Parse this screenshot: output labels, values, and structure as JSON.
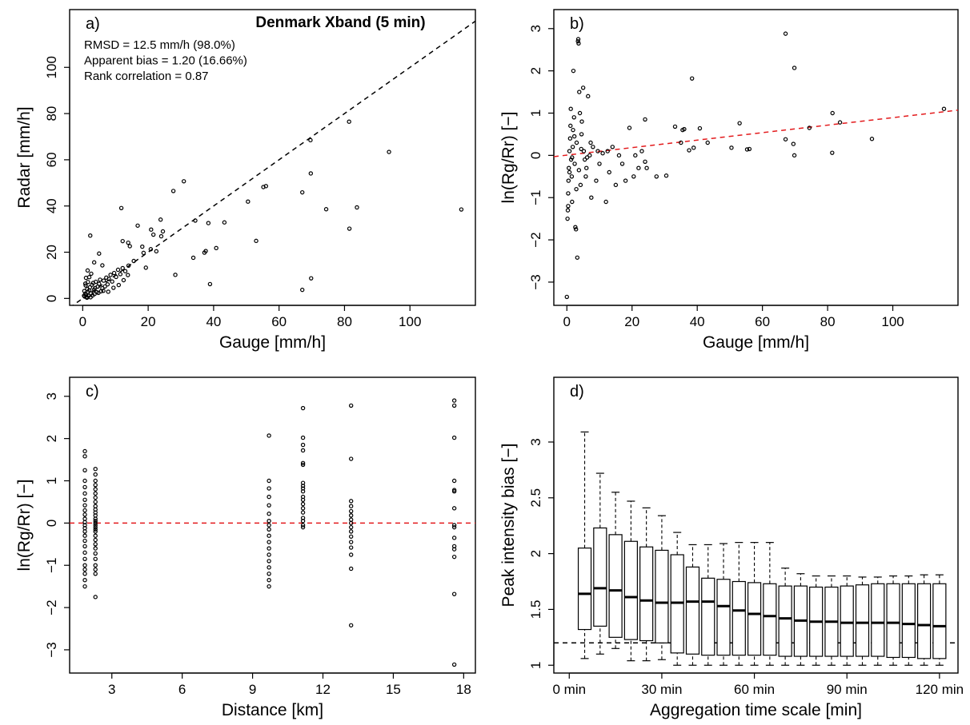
{
  "chart_data": [
    {
      "panel": "a)",
      "type": "scatter",
      "title": "Denmark Xband (5 min)",
      "annotations": [
        "RMSD = 12.5 mm/h (98.0%)",
        "Apparent bias = 1.20 (16.66%)",
        "Rank correlation = 0.87"
      ],
      "xlabel": "Gauge [mm/h]",
      "ylabel": "Radar [mm/h]",
      "xlim": [
        -4,
        120
      ],
      "ylim": [
        -3,
        125
      ],
      "xticks": [
        0,
        20,
        40,
        60,
        80,
        100
      ],
      "yticks": [
        0,
        20,
        40,
        60,
        80,
        100
      ],
      "reference_line": "1:1 dashed",
      "points": [
        [
          0.4,
          1.2
        ],
        [
          0.6,
          0.8
        ],
        [
          0.8,
          2.1
        ],
        [
          1.0,
          1.5
        ],
        [
          1.2,
          0.6
        ],
        [
          0.5,
          3.2
        ],
        [
          1.4,
          4.1
        ],
        [
          0.9,
          5.6
        ],
        [
          1.6,
          2.8
        ],
        [
          1.8,
          1.1
        ],
        [
          2.0,
          3.5
        ],
        [
          2.2,
          4.8
        ],
        [
          2.5,
          2.2
        ],
        [
          2.8,
          5.9
        ],
        [
          3.0,
          1.3
        ],
        [
          3.2,
          6.7
        ],
        [
          3.5,
          3.8
        ],
        [
          3.8,
          4.5
        ],
        [
          4.0,
          7.2
        ],
        [
          4.3,
          2.7
        ],
        [
          4.6,
          5.1
        ],
        [
          5.0,
          6.3
        ],
        [
          5.3,
          8.1
        ],
        [
          5.6,
          3.1
        ],
        [
          6.0,
          4.4
        ],
        [
          6.4,
          7.7
        ],
        [
          6.8,
          5.2
        ],
        [
          7.2,
          9.0
        ],
        [
          7.6,
          6.1
        ],
        [
          8.0,
          8.4
        ],
        [
          8.5,
          10.2
        ],
        [
          9.0,
          7.3
        ],
        [
          9.6,
          11.0
        ],
        [
          10.2,
          9.3
        ],
        [
          10.8,
          12.4
        ],
        [
          11.5,
          10.5
        ],
        [
          12.2,
          13.1
        ],
        [
          13.0,
          11.8
        ],
        [
          14.0,
          14.2
        ],
        [
          1.0,
          8.9
        ],
        [
          2.0,
          9.2
        ],
        [
          1.5,
          12.1
        ],
        [
          2.3,
          27.2
        ],
        [
          3.5,
          15.6
        ],
        [
          5.0,
          19.4
        ],
        [
          6.0,
          14.3
        ],
        [
          2.6,
          10.7
        ],
        [
          0.8,
          6.4
        ],
        [
          1.6,
          7.1
        ],
        [
          1.3,
          0.3
        ],
        [
          2.4,
          0.5
        ],
        [
          3.6,
          1.9
        ],
        [
          4.8,
          2.4
        ],
        [
          6.3,
          3.3
        ],
        [
          7.8,
          2.9
        ],
        [
          9.4,
          4.6
        ],
        [
          11.0,
          5.8
        ],
        [
          12.5,
          7.9
        ],
        [
          13.8,
          10.1
        ],
        [
          11.8,
          39.1
        ],
        [
          12.2,
          24.8
        ],
        [
          14.4,
          22.6
        ],
        [
          13.9,
          24.1
        ],
        [
          16.8,
          31.5
        ],
        [
          18.2,
          22.4
        ],
        [
          19.3,
          13.3
        ],
        [
          20.9,
          29.8
        ],
        [
          21.6,
          27.6
        ],
        [
          22.5,
          20.4
        ],
        [
          23.8,
          34.1
        ],
        [
          24.0,
          26.9
        ],
        [
          27.7,
          46.5
        ],
        [
          30.9,
          50.7
        ],
        [
          18.6,
          19.7
        ],
        [
          20.8,
          21.3
        ],
        [
          15.6,
          16.2
        ],
        [
          24.5,
          29.0
        ],
        [
          28.3,
          10.2
        ],
        [
          33.8,
          17.6
        ],
        [
          34.4,
          33.7
        ],
        [
          37.2,
          19.8
        ],
        [
          37.6,
          20.5
        ],
        [
          38.4,
          32.6
        ],
        [
          38.9,
          6.2
        ],
        [
          40.8,
          21.8
        ],
        [
          43.3,
          32.9
        ],
        [
          50.5,
          41.9
        ],
        [
          53.0,
          24.9
        ],
        [
          55.2,
          48.2
        ],
        [
          56.0,
          48.6
        ],
        [
          67.1,
          45.9
        ],
        [
          67.1,
          3.7
        ],
        [
          69.6,
          68.5
        ],
        [
          69.7,
          54.1
        ],
        [
          69.8,
          8.7
        ],
        [
          74.4,
          38.6
        ],
        [
          81.4,
          76.5
        ],
        [
          81.5,
          30.2
        ],
        [
          83.8,
          39.4
        ],
        [
          93.6,
          63.4
        ],
        [
          115.7,
          38.5
        ]
      ]
    },
    {
      "panel": "b)",
      "type": "scatter",
      "xlabel": "Gauge [mm/h]",
      "ylabel": "ln(Rg/Rr) [−]",
      "xlim": [
        -4,
        120
      ],
      "ylim": [
        -3.55,
        3.45
      ],
      "xticks": [
        0,
        20,
        40,
        60,
        80,
        100
      ],
      "yticks": [
        -3,
        -2,
        -1,
        0,
        1,
        2,
        3
      ],
      "ytick_labels": [
        "−3",
        "−2",
        "−1",
        "0",
        "1",
        "2",
        "3"
      ],
      "trend_line": {
        "color": "#e31a1c",
        "style": "dashed",
        "x": [
          -4,
          120
        ],
        "y": [
          -0.03,
          1.07
        ]
      },
      "points": [
        [
          0.0,
          -3.35
        ],
        [
          0.2,
          -1.5
        ],
        [
          0.3,
          -1.3
        ],
        [
          0.4,
          -0.9
        ],
        [
          0.5,
          -0.6
        ],
        [
          0.6,
          -0.3
        ],
        [
          0.8,
          0.1
        ],
        [
          1.0,
          0.4
        ],
        [
          1.1,
          0.7
        ],
        [
          1.2,
          1.1
        ],
        [
          1.3,
          -0.1
        ],
        [
          1.5,
          -0.5
        ],
        [
          1.6,
          -1.1
        ],
        [
          1.8,
          0.2
        ],
        [
          2.0,
          2.0
        ],
        [
          2.2,
          0.9
        ],
        [
          2.4,
          -0.2
        ],
        [
          2.6,
          -1.7
        ],
        [
          2.8,
          -1.75
        ],
        [
          3.0,
          0.3
        ],
        [
          3.2,
          -2.42
        ],
        [
          3.4,
          2.7
        ],
        [
          3.5,
          2.75
        ],
        [
          3.6,
          2.65
        ],
        [
          3.8,
          1.5
        ],
        [
          4.0,
          1.0
        ],
        [
          4.2,
          -0.7
        ],
        [
          4.5,
          0.5
        ],
        [
          5.0,
          1.6
        ],
        [
          5.2,
          0.1
        ],
        [
          5.5,
          -0.1
        ],
        [
          6.0,
          -0.3
        ],
        [
          6.5,
          1.4
        ],
        [
          7.0,
          0.0
        ],
        [
          7.5,
          -1.0
        ],
        [
          8.0,
          0.2
        ],
        [
          9.0,
          -0.6
        ],
        [
          10.0,
          -0.2
        ],
        [
          11.0,
          0.05
        ],
        [
          12.0,
          -1.1
        ],
        [
          12.5,
          0.1
        ],
        [
          13.0,
          -0.4
        ],
        [
          14.0,
          0.2
        ],
        [
          15.0,
          -0.7
        ],
        [
          16.0,
          0.0
        ],
        [
          17.0,
          -0.2
        ],
        [
          18.0,
          -0.6
        ],
        [
          19.2,
          0.65
        ],
        [
          20.5,
          -0.5
        ],
        [
          21.0,
          0.0
        ],
        [
          22.0,
          -0.3
        ],
        [
          23.0,
          0.1
        ],
        [
          24.0,
          0.85
        ],
        [
          24.5,
          -0.3
        ],
        [
          24.0,
          -0.15
        ],
        [
          27.5,
          -0.5
        ],
        [
          30.5,
          -0.48
        ],
        [
          33.2,
          0.68
        ],
        [
          35.0,
          0.3
        ],
        [
          35.5,
          0.6
        ],
        [
          36.0,
          0.62
        ],
        [
          37.5,
          0.12
        ],
        [
          38.4,
          1.82
        ],
        [
          38.9,
          0.18
        ],
        [
          40.8,
          0.64
        ],
        [
          43.2,
          0.3
        ],
        [
          50.5,
          0.18
        ],
        [
          53.0,
          0.76
        ],
        [
          55.3,
          0.14
        ],
        [
          56.0,
          0.15
        ],
        [
          67.1,
          0.38
        ],
        [
          67.1,
          2.88
        ],
        [
          69.5,
          0.27
        ],
        [
          69.8,
          2.07
        ],
        [
          69.8,
          0.0
        ],
        [
          74.4,
          0.65
        ],
        [
          81.4,
          0.06
        ],
        [
          81.5,
          1.0
        ],
        [
          83.8,
          0.78
        ],
        [
          93.6,
          0.39
        ],
        [
          115.7,
          1.1
        ],
        [
          0.8,
          -0.4
        ],
        [
          1.9,
          0.6
        ],
        [
          2.9,
          -0.8
        ],
        [
          4.6,
          0.8
        ],
        [
          5.8,
          -0.5
        ],
        [
          7.3,
          0.3
        ],
        [
          9.5,
          0.1
        ],
        [
          0.4,
          -1.2
        ],
        [
          1.6,
          -0.05
        ],
        [
          2.3,
          0.45
        ],
        [
          3.7,
          -0.35
        ],
        [
          4.4,
          0.15
        ],
        [
          6.2,
          -0.05
        ]
      ]
    },
    {
      "panel": "c)",
      "type": "scatter",
      "xlabel": "Distance [km]",
      "ylabel": "ln(Rg/Rr) [−]",
      "xlim": [
        1.2,
        18.5
      ],
      "ylim": [
        -3.55,
        3.45
      ],
      "xticks": [
        3,
        6,
        9,
        12,
        15,
        18
      ],
      "yticks": [
        -3,
        -2,
        -1,
        0,
        1,
        2,
        3
      ],
      "ytick_labels": [
        "−3",
        "−2",
        "−1",
        "0",
        "1",
        "2",
        "3"
      ],
      "reference_line": {
        "color": "#e31a1c",
        "style": "dashed",
        "y": 0
      },
      "columns": [
        {
          "x": 1.85,
          "y": [
            1.7,
            1.58,
            1.25,
            1.0,
            0.85,
            0.7,
            0.55,
            0.42,
            0.3,
            0.2,
            0.1,
            0.02,
            -0.05,
            -0.12,
            -0.2,
            -0.3,
            -0.42,
            -0.55,
            -0.7,
            -0.85,
            -1.0,
            -1.1,
            -1.2,
            -1.35,
            -1.5
          ]
        },
        {
          "x": 2.3,
          "y": [
            1.28,
            1.15,
            1.0,
            0.9,
            0.8,
            0.7,
            0.6,
            0.5,
            0.4,
            0.32,
            0.25,
            0.18,
            0.1,
            0.05,
            0.0,
            -0.05,
            -0.1,
            -0.15,
            -0.2,
            -0.3,
            -0.4,
            -0.5,
            -0.6,
            -0.72,
            -0.85,
            -1.0,
            -1.1,
            -1.2,
            -1.75
          ]
        },
        {
          "x": 9.7,
          "y": [
            2.07,
            1.0,
            0.82,
            0.62,
            0.42,
            0.22,
            0.05,
            -0.05,
            -0.15,
            -0.3,
            -0.45,
            -0.6,
            -0.75,
            -0.9,
            -1.05,
            -1.2,
            -1.35,
            -1.5
          ]
        },
        {
          "x": 11.15,
          "y": [
            2.72,
            2.02,
            1.85,
            1.72,
            1.42,
            1.38,
            0.95,
            0.88,
            0.82,
            0.75,
            0.62,
            0.55,
            0.45,
            0.35,
            0.25,
            0.12,
            0.05,
            -0.05,
            -0.1
          ]
        },
        {
          "x": 13.2,
          "y": [
            2.78,
            1.52,
            0.52,
            0.4,
            0.28,
            0.18,
            0.08,
            0.0,
            -0.1,
            -0.2,
            -0.32,
            -0.45,
            -0.58,
            -0.75,
            -1.08,
            -2.42
          ]
        },
        {
          "x": 17.6,
          "y": [
            2.9,
            2.78,
            2.02,
            1.0,
            0.78,
            0.75,
            0.35,
            -0.05,
            -0.1,
            -0.35,
            -0.55,
            -0.62,
            -0.8,
            -1.68,
            -3.35
          ]
        }
      ]
    },
    {
      "panel": "d)",
      "type": "box",
      "xlabel": "Aggregation time scale [min]",
      "ylabel": "Peak intensity bias [−]",
      "xlim": [
        -5,
        126
      ],
      "ylim": [
        0.93,
        3.58
      ],
      "xticks": [
        0,
        30,
        60,
        90,
        120
      ],
      "xtick_labels": [
        "0 min",
        "30 min",
        "60 min",
        "90 min",
        "120 min"
      ],
      "yticks": [
        1,
        1.5,
        2,
        2.5,
        3
      ],
      "ytick_labels": [
        "1",
        "1.5",
        "2",
        "2.5",
        "3"
      ],
      "reference_line": {
        "style": "dashed",
        "y": 1.2
      },
      "boxes": [
        {
          "x": 5,
          "min": 1.06,
          "q1": 1.32,
          "median": 1.64,
          "q3": 2.05,
          "max": 3.09
        },
        {
          "x": 10,
          "min": 1.1,
          "q1": 1.35,
          "median": 1.69,
          "q3": 2.23,
          "max": 2.72
        },
        {
          "x": 15,
          "min": 1.15,
          "q1": 1.25,
          "median": 1.67,
          "q3": 2.17,
          "max": 2.55
        },
        {
          "x": 20,
          "min": 1.04,
          "q1": 1.23,
          "median": 1.61,
          "q3": 2.11,
          "max": 2.47
        },
        {
          "x": 25,
          "min": 1.04,
          "q1": 1.22,
          "median": 1.58,
          "q3": 2.06,
          "max": 2.41
        },
        {
          "x": 30,
          "min": 1.05,
          "q1": 1.2,
          "median": 1.56,
          "q3": 2.03,
          "max": 2.34
        },
        {
          "x": 35,
          "min": 1.0,
          "q1": 1.11,
          "median": 1.56,
          "q3": 1.99,
          "max": 2.19
        },
        {
          "x": 40,
          "min": 1.0,
          "q1": 1.1,
          "median": 1.57,
          "q3": 1.88,
          "max": 2.08
        },
        {
          "x": 45,
          "min": 1.0,
          "q1": 1.09,
          "median": 1.57,
          "q3": 1.78,
          "max": 2.08
        },
        {
          "x": 50,
          "min": 1.0,
          "q1": 1.09,
          "median": 1.53,
          "q3": 1.77,
          "max": 2.09
        },
        {
          "x": 55,
          "min": 1.0,
          "q1": 1.09,
          "median": 1.49,
          "q3": 1.75,
          "max": 2.1
        },
        {
          "x": 60,
          "min": 1.0,
          "q1": 1.09,
          "median": 1.46,
          "q3": 1.74,
          "max": 2.1
        },
        {
          "x": 65,
          "min": 1.0,
          "q1": 1.09,
          "median": 1.44,
          "q3": 1.73,
          "max": 2.1
        },
        {
          "x": 70,
          "min": 1.0,
          "q1": 1.08,
          "median": 1.42,
          "q3": 1.71,
          "max": 1.87
        },
        {
          "x": 75,
          "min": 1.0,
          "q1": 1.08,
          "median": 1.4,
          "q3": 1.71,
          "max": 1.82
        },
        {
          "x": 80,
          "min": 1.0,
          "q1": 1.08,
          "median": 1.39,
          "q3": 1.7,
          "max": 1.8
        },
        {
          "x": 85,
          "min": 1.0,
          "q1": 1.08,
          "median": 1.39,
          "q3": 1.7,
          "max": 1.8
        },
        {
          "x": 90,
          "min": 1.0,
          "q1": 1.08,
          "median": 1.38,
          "q3": 1.71,
          "max": 1.8
        },
        {
          "x": 95,
          "min": 1.0,
          "q1": 1.08,
          "median": 1.38,
          "q3": 1.72,
          "max": 1.79
        },
        {
          "x": 100,
          "min": 1.0,
          "q1": 1.08,
          "median": 1.38,
          "q3": 1.73,
          "max": 1.79
        },
        {
          "x": 105,
          "min": 1.0,
          "q1": 1.07,
          "median": 1.38,
          "q3": 1.73,
          "max": 1.8
        },
        {
          "x": 110,
          "min": 1.0,
          "q1": 1.07,
          "median": 1.37,
          "q3": 1.73,
          "max": 1.8
        },
        {
          "x": 115,
          "min": 1.0,
          "q1": 1.06,
          "median": 1.36,
          "q3": 1.73,
          "max": 1.81
        },
        {
          "x": 120,
          "min": 1.0,
          "q1": 1.06,
          "median": 1.35,
          "q3": 1.73,
          "max": 1.81
        }
      ]
    }
  ],
  "colors": {
    "axis": "#000000",
    "points": "#000000",
    "trend": "#e31a1c",
    "reference": "#000000"
  }
}
